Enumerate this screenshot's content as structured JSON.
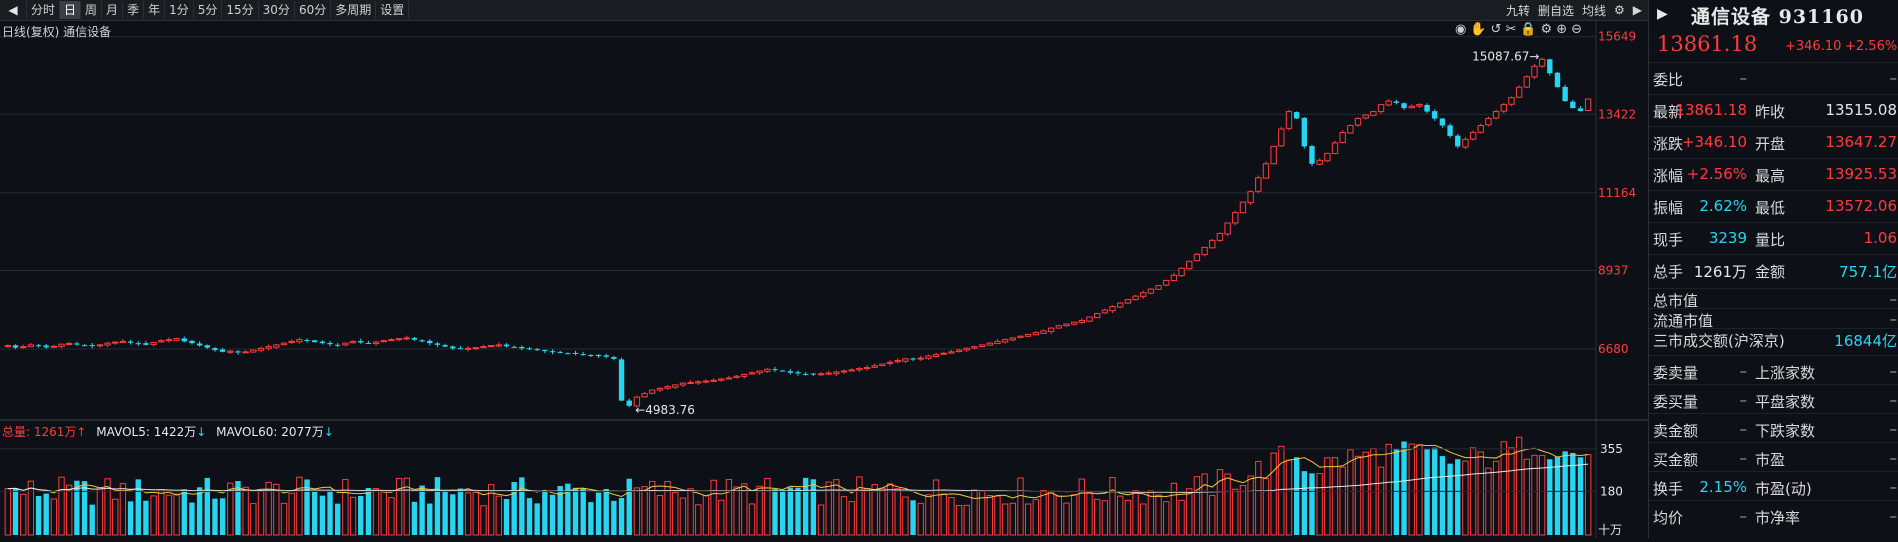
{
  "toolbar": {
    "tabs": [
      "分时",
      "日",
      "周",
      "月",
      "季",
      "年",
      "1分",
      "5分",
      "15分",
      "30分",
      "60分",
      "多周期",
      "设置"
    ],
    "active_tab": "日",
    "right_items": [
      "九转",
      "删自选",
      "均线"
    ]
  },
  "chart": {
    "subtitle": "日线(复权)  通信设备",
    "y_ticks": [
      "15649",
      "13422",
      "11164",
      "8937",
      "6680"
    ],
    "high_annotation": "15087.67",
    "low_annotation": "4983.76",
    "volume_legend": {
      "total": "总量: 1261万",
      "mavol5": "MAVOL5: 1422万",
      "mavol60": "MAVOL60: 2077万"
    },
    "volume_ticks": [
      "355",
      "180"
    ],
    "volume_unit": "十万"
  },
  "colors": {
    "up": "#ff3b3b",
    "down": "#27d5f0",
    "bg": "#0d1117",
    "grid": "#262a31",
    "ma_white": "#e8e8e8",
    "ma_yellow": "#f2c744"
  },
  "panel": {
    "title": "通信设备 931160",
    "price": "13861.18",
    "change": "+346.10",
    "change_pct": "+2.56%",
    "rows": [
      {
        "l1": "委比",
        "v1": "–",
        "l2": "",
        "v2": "–"
      },
      {
        "l1": "最新",
        "v1": "13861.18",
        "l2": "昨收",
        "v2": "13515.08"
      },
      {
        "l1": "涨跌",
        "v1": "+346.10",
        "l2": "开盘",
        "v2": "13647.27"
      },
      {
        "l1": "涨幅",
        "v1": "+2.56%",
        "l2": "最高",
        "v2": "13925.53"
      },
      {
        "l1": "振幅",
        "v1": "2.62%",
        "l2": "最低",
        "v2": "13572.06"
      },
      {
        "l1": "现手",
        "v1": "3239",
        "l2": "量比",
        "v2": "1.06"
      },
      {
        "l1": "总手",
        "v1": "1261万",
        "l2": "金额",
        "v2": "757.1亿"
      }
    ],
    "rows2": [
      {
        "l1": "总市值",
        "v1": "",
        "l2": "",
        "v2": "–"
      },
      {
        "l1": "流通市值",
        "v1": "",
        "l2": "",
        "v2": "–"
      },
      {
        "l1": "三市成交额(沪深京)",
        "v1": "",
        "l2": "",
        "v2": "16844亿"
      }
    ],
    "rows3": [
      {
        "l1": "委卖量",
        "v1": "–",
        "l2": "上涨家数",
        "v2": "–"
      },
      {
        "l1": "委买量",
        "v1": "–",
        "l2": "平盘家数",
        "v2": "–"
      },
      {
        "l1": "卖金额",
        "v1": "–",
        "l2": "下跌家数",
        "v2": "–"
      },
      {
        "l1": "买金额",
        "v1": "–",
        "l2": "市盈",
        "v2": "–"
      },
      {
        "l1": "换手",
        "v1": "2.15%",
        "l2": "市盈(动)",
        "v2": "–"
      },
      {
        "l1": "均价",
        "v1": "–",
        "l2": "市净率",
        "v2": "–"
      }
    ]
  },
  "chart_data": {
    "type": "candlestick",
    "ylim": [
      4700,
      15900
    ],
    "close_series": [
      6780,
      6720,
      6750,
      6800,
      6770,
      6730,
      6760,
      6820,
      6840,
      6810,
      6790,
      6770,
      6800,
      6850,
      6880,
      6900,
      6860,
      6830,
      6800,
      6870,
      6920,
      6950,
      6980,
      6900,
      6850,
      6780,
      6720,
      6650,
      6600,
      6620,
      6580,
      6600,
      6650,
      6700,
      6750,
      6800,
      6850,
      6900,
      6950,
      6920,
      6880,
      6850,
      6820,
      6800,
      6850,
      6900,
      6870,
      6840,
      6880,
      6920,
      6950,
      6980,
      7000,
      6950,
      6900,
      6850,
      6800,
      6750,
      6700,
      6680,
      6700,
      6720,
      6750,
      6780,
      6800,
      6760,
      6720,
      6700,
      6680,
      6650,
      6620,
      6600,
      6580,
      6560,
      6540,
      6520,
      6500,
      6480,
      6460,
      6400,
      5200,
      5050,
      5300,
      5400,
      5500,
      5550,
      5600,
      5650,
      5700,
      5720,
      5740,
      5760,
      5780,
      5820,
      5850,
      5900,
      5950,
      6000,
      6050,
      6100,
      6080,
      6050,
      6000,
      5980,
      5960,
      5950,
      5970,
      5990,
      6020,
      6050,
      6080,
      6120,
      6150,
      6200,
      6250,
      6300,
      6350,
      6400,
      6380,
      6420,
      6480,
      6520,
      6560,
      6600,
      6650,
      6700,
      6750,
      6800,
      6850,
      6900,
      6950,
      7000,
      7050,
      7100,
      7150,
      7200,
      7280,
      7350,
      7400,
      7450,
      7500,
      7600,
      7700,
      7800,
      7900,
      8000,
      8100,
      8200,
      8300,
      8400,
      8500,
      8650,
      8800,
      9000,
      9200,
      9400,
      9600,
      9800,
      10000,
      10300,
      10600,
      10900,
      11200,
      11600,
      12000,
      12500,
      13000,
      13500,
      13300,
      12500,
      12000,
      12100,
      12300,
      12600,
      12900,
      13100,
      13300,
      13400,
      13500,
      13700,
      13800,
      13750,
      13600,
      13650,
      13700,
      13500,
      13300,
      13100,
      12800,
      12500,
      12700,
      12900,
      13100,
      13300,
      13500,
      13700,
      13900,
      14200,
      14500,
      14800,
      15000,
      14600,
      14200,
      13800,
      13600,
      13515,
      13861
    ],
    "high_label": 15087.67,
    "low_label": 4983.76,
    "volume_ylim": [
      0,
      400
    ]
  }
}
